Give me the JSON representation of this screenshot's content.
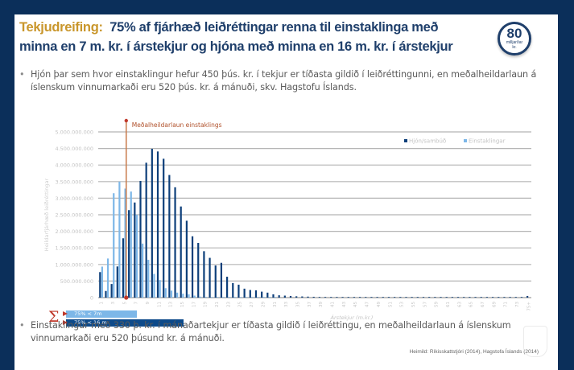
{
  "slide": {
    "title_accent": "Tekjudreifing:",
    "title_main": "75% af fjárhæð leiðréttingar renna til einstaklinga með minna en 7 m. kr. í árstekjur og hjóna með minna en 16 m. kr. í árstekjur",
    "badge": {
      "number": "80",
      "unit_line1": "milljarðar",
      "unit_line2": "kr."
    },
    "bullets": [
      "Hjón þar sem hvor einstaklingur hefur 450 þús. kr. í tekjur er tíðasta gildið í leiðréttingunni, en meðalheildarlaun á íslenskum vinnumarkaði eru 520 þús. kr. á mánuði, skv. Hagstofu Íslands.",
      "Einstaklingur með 330 þ. kr. í mánaðartekjur er tíðasta gildið í leiðréttingu, en meðalheildarlaun á íslenskum vinnumarkaði eru 520 þúsund kr. á mánuði."
    ],
    "source": "Heimild: Ríkisskattstjóri (2014), Hagstofa Íslands (2014)",
    "summary": {
      "symbol": "Σ",
      "items": [
        {
          "label": "75% < 7m",
          "color": "#7db7e8"
        },
        {
          "label": "75% < 16 m",
          "color": "#0d4a8a"
        }
      ]
    },
    "colors": {
      "frame": "#0b2f5a",
      "title": "#1f3f6b",
      "accent": "#c9962b",
      "marker": "#c0392b",
      "mean_line": "#c87a4a"
    }
  },
  "chart_data": {
    "type": "bar",
    "title": "",
    "xlabel": "Árstekjur (m.kr.)",
    "ylabel": "Heildarfjárhæð leiðréttingar",
    "ylim": [
      0,
      5000000000
    ],
    "y_ticks": [
      0,
      500000000,
      1000000000,
      1500000000,
      2000000000,
      2500000000,
      3000000000,
      3500000000,
      4000000000,
      4500000000,
      5000000000
    ],
    "y_tick_labels": [
      "0",
      "500.000.000",
      "1.000.000.000",
      "1.500.000.000",
      "2.000.000.000",
      "2.500.000.000",
      "3.000.000.000",
      "3.500.000.000",
      "4.000.000.000",
      "4.500.000.000",
      "5.000.000.000"
    ],
    "x_tick_labels": [
      "1",
      "3",
      "5",
      "7",
      "9",
      "11",
      "13",
      "15",
      "17",
      "19",
      "21",
      "23",
      "25",
      "27",
      "29",
      "31",
      "33",
      "35",
      "37",
      "39",
      "41",
      "43",
      "45",
      "47",
      "49",
      "51",
      "53",
      "55",
      "57",
      "59",
      "61",
      "63",
      "65",
      "67",
      "69",
      "71",
      "73",
      "75+"
    ],
    "categories": [
      "1",
      "2",
      "3",
      "4",
      "5",
      "6",
      "7",
      "8",
      "9",
      "10",
      "11",
      "12",
      "13",
      "14",
      "15",
      "16",
      "17",
      "18",
      "19",
      "20",
      "21",
      "22",
      "23",
      "24",
      "25",
      "26",
      "27",
      "28",
      "29",
      "30",
      "31",
      "32",
      "33",
      "34",
      "35",
      "36",
      "37",
      "38",
      "39",
      "40",
      "41",
      "42",
      "43",
      "44",
      "45",
      "46",
      "47",
      "48",
      "49",
      "50",
      "51",
      "52",
      "53",
      "54",
      "55",
      "56",
      "57",
      "58",
      "59",
      "60",
      "61",
      "62",
      "63",
      "64",
      "65",
      "66",
      "67",
      "68",
      "69",
      "70",
      "71",
      "72",
      "73",
      "74",
      "75+"
    ],
    "grid": true,
    "legend_position": "top-right",
    "annotation": {
      "label": "Meðalheildarlaun einstaklings",
      "x_category": "6"
    },
    "series": [
      {
        "name": "Hjón/sambúð",
        "color": "#0d3f7a",
        "values": [
          770000000,
          200000000,
          410000000,
          940000000,
          1790000000,
          2640000000,
          2870000000,
          3520000000,
          4070000000,
          4490000000,
          4410000000,
          4190000000,
          3700000000,
          3330000000,
          2750000000,
          2320000000,
          1850000000,
          1650000000,
          1400000000,
          1200000000,
          970000000,
          1050000000,
          630000000,
          440000000,
          390000000,
          270000000,
          230000000,
          220000000,
          180000000,
          150000000,
          100000000,
          70000000,
          60000000,
          50000000,
          40000000,
          35000000,
          30000000,
          25000000,
          20000000,
          18000000,
          15000000,
          12000000,
          10000000,
          8000000,
          7000000,
          6000000,
          5000000,
          5000000,
          4000000,
          4000000,
          3000000,
          3000000,
          3000000,
          2000000,
          2000000,
          2000000,
          2000000,
          2000000,
          1000000,
          1000000,
          1000000,
          1000000,
          1000000,
          1000000,
          1000000,
          1000000,
          1000000,
          1000000,
          1000000,
          1000000,
          1000000,
          1000000,
          1000000,
          1000000,
          50000000
        ]
      },
      {
        "name": "Einstaklingar",
        "color": "#7db7e8",
        "values": [
          935000000,
          1180000000,
          3150000000,
          3500000000,
          3290000000,
          3200000000,
          2500000000,
          1630000000,
          1140000000,
          715000000,
          530000000,
          285000000,
          210000000,
          150000000,
          120000000,
          100000000,
          60000000,
          30000000,
          20000000,
          10000000,
          8000000,
          6000000,
          5000000,
          4000000,
          3000000,
          2000000,
          2000000,
          1000000,
          1000000,
          1000000,
          1000000,
          0,
          0,
          0,
          0,
          0,
          0,
          0,
          0,
          0,
          0,
          0,
          0,
          0,
          0,
          0,
          0,
          0,
          0,
          0,
          0,
          0,
          0,
          0,
          0,
          0,
          0,
          0,
          0,
          0,
          0,
          0,
          0,
          0,
          0,
          0,
          0,
          0,
          0,
          0,
          0,
          0,
          0,
          0,
          0
        ]
      }
    ]
  }
}
